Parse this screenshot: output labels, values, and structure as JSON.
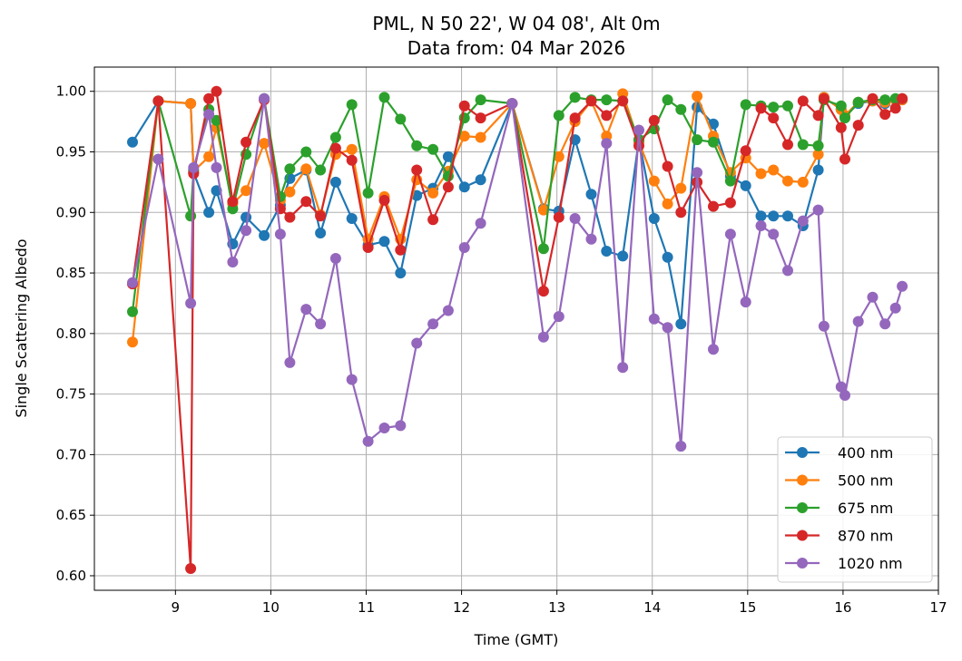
{
  "chart_data": {
    "type": "line",
    "title_line1": "PML, N 50 22', W 04 08', Alt 0m",
    "title_line2": "Data from: 04 Mar 2026",
    "xlabel": "Time (GMT)",
    "ylabel": "Single Scattering Albedo",
    "xlim": [
      8.15,
      17.0
    ],
    "ylim": [
      0.588,
      1.02
    ],
    "xticks": [
      9,
      10,
      11,
      12,
      13,
      14,
      15,
      16,
      17
    ],
    "yticks": [
      0.6,
      0.65,
      0.7,
      0.75,
      0.8,
      0.85,
      0.9,
      0.95,
      1.0
    ],
    "grid": true,
    "legend_position": "bottom-right",
    "x": [
      8.55,
      8.82,
      9.16,
      9.19,
      9.35,
      9.43,
      9.6,
      9.74,
      9.93,
      10.1,
      10.2,
      10.37,
      10.52,
      10.68,
      10.85,
      11.02,
      11.19,
      11.36,
      11.53,
      11.7,
      11.86,
      12.03,
      12.2,
      12.53,
      12.86,
      13.02,
      13.19,
      13.36,
      13.52,
      13.69,
      13.86,
      14.02,
      14.16,
      14.3,
      14.47,
      14.64,
      14.82,
      14.98,
      15.14,
      15.27,
      15.42,
      15.58,
      15.74,
      15.8,
      15.98,
      16.02,
      16.16,
      16.31,
      16.44,
      16.55,
      16.62
    ],
    "series": [
      {
        "name": "400 nm",
        "color": "#1f77b4",
        "values": [
          0.958,
          0.992,
          0.99,
          0.933,
          0.9,
          0.918,
          0.874,
          0.896,
          0.881,
          0.906,
          0.928,
          0.935,
          0.883,
          0.925,
          0.895,
          0.873,
          0.876,
          0.85,
          0.914,
          0.92,
          0.946,
          0.921,
          0.927,
          0.99,
          0.903,
          0.901,
          0.96,
          0.915,
          0.868,
          0.864,
          0.96,
          0.895,
          0.863,
          0.808,
          0.987,
          0.973,
          0.93,
          0.922,
          0.897,
          0.897,
          0.897,
          0.889,
          0.935,
          0.995,
          0.985,
          0.979,
          0.99,
          0.992,
          0.99,
          0.993,
          0.993
        ]
      },
      {
        "name": "500 nm",
        "color": "#ff7f0e",
        "values": [
          0.793,
          0.992,
          0.99,
          0.934,
          0.946,
          0.97,
          0.907,
          0.918,
          0.957,
          0.91,
          0.917,
          0.936,
          0.898,
          0.948,
          0.952,
          0.878,
          0.913,
          0.878,
          0.927,
          0.916,
          0.934,
          0.963,
          0.962,
          0.99,
          0.902,
          0.946,
          0.975,
          0.992,
          0.963,
          0.998,
          0.958,
          0.926,
          0.907,
          0.92,
          0.996,
          0.963,
          0.933,
          0.945,
          0.932,
          0.935,
          0.926,
          0.925,
          0.948,
          0.995,
          0.985,
          0.98,
          0.991,
          0.992,
          0.991,
          0.993,
          0.993
        ]
      },
      {
        "name": "675 nm",
        "color": "#2ca02c",
        "values": [
          0.818,
          0.992,
          0.897,
          0.935,
          0.985,
          0.976,
          0.903,
          0.948,
          0.994,
          0.913,
          0.936,
          0.95,
          0.935,
          0.962,
          0.989,
          0.916,
          0.995,
          0.977,
          0.955,
          0.952,
          0.93,
          0.978,
          0.993,
          0.99,
          0.87,
          0.98,
          0.995,
          0.993,
          0.993,
          0.992,
          0.96,
          0.969,
          0.993,
          0.985,
          0.96,
          0.958,
          0.926,
          0.989,
          0.988,
          0.987,
          0.988,
          0.956,
          0.955,
          0.993,
          0.988,
          0.978,
          0.991,
          0.993,
          0.993,
          0.994,
          0.994
        ]
      },
      {
        "name": "870 nm",
        "color": "#d62728",
        "values": [
          0.841,
          0.992,
          0.606,
          0.932,
          0.994,
          1.0,
          0.909,
          0.958,
          0.993,
          0.903,
          0.896,
          0.909,
          0.897,
          0.953,
          0.943,
          0.871,
          0.91,
          0.869,
          0.935,
          0.894,
          0.921,
          0.988,
          0.978,
          0.99,
          0.835,
          0.896,
          0.978,
          0.992,
          0.98,
          0.992,
          0.955,
          0.976,
          0.938,
          0.9,
          0.925,
          0.905,
          0.908,
          0.951,
          0.986,
          0.978,
          0.956,
          0.992,
          0.98,
          0.994,
          0.97,
          0.944,
          0.972,
          0.994,
          0.981,
          0.986,
          0.994
        ]
      },
      {
        "name": "1020 nm",
        "color": "#9467bd",
        "values": [
          0.842,
          0.944,
          0.825,
          0.937,
          0.981,
          0.937,
          0.859,
          0.885,
          0.994,
          0.882,
          0.776,
          0.82,
          0.808,
          0.862,
          0.762,
          0.711,
          0.722,
          0.724,
          0.792,
          0.808,
          0.819,
          0.871,
          0.891,
          0.99,
          0.797,
          0.814,
          0.895,
          0.878,
          0.957,
          0.772,
          0.968,
          0.812,
          0.805,
          0.707,
          0.933,
          0.787,
          0.882,
          0.826,
          0.889,
          0.882,
          0.852,
          0.893,
          0.902,
          0.806,
          0.756,
          0.749,
          0.81,
          0.83,
          0.808,
          0.821,
          0.839
        ]
      }
    ]
  }
}
